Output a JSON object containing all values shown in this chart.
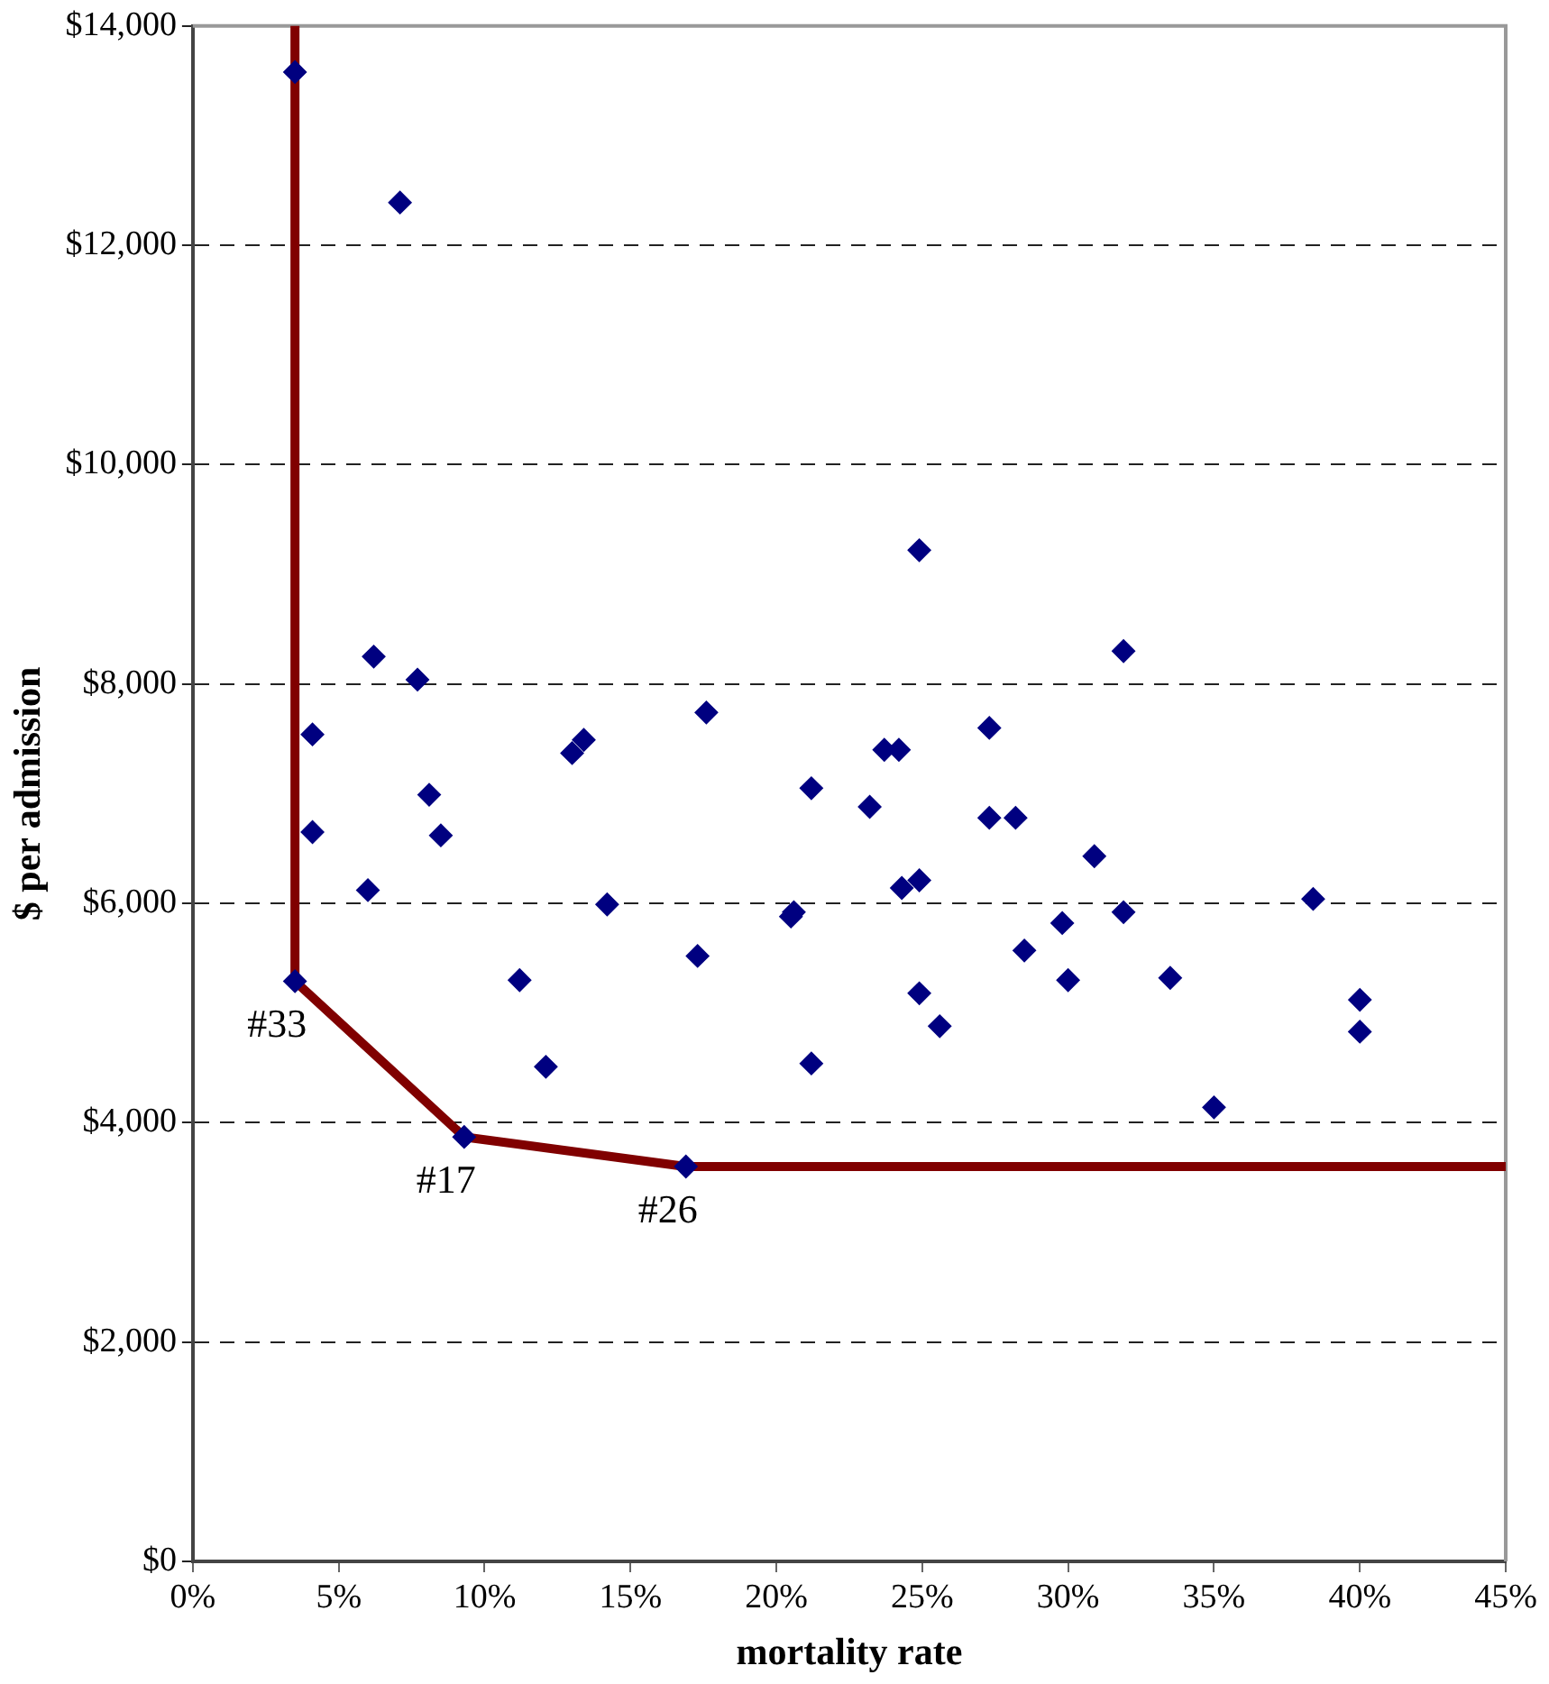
{
  "chart_data": {
    "type": "scatter",
    "xlabel": "mortality rate",
    "ylabel": "$ per admission",
    "xlim": [
      0,
      45
    ],
    "ylim": [
      0,
      14000
    ],
    "xticks": [
      {
        "value": 0,
        "label": "0%"
      },
      {
        "value": 5,
        "label": "5%"
      },
      {
        "value": 10,
        "label": "10%"
      },
      {
        "value": 15,
        "label": "15%"
      },
      {
        "value": 20,
        "label": "20%"
      },
      {
        "value": 25,
        "label": "25%"
      },
      {
        "value": 30,
        "label": "30%"
      },
      {
        "value": 35,
        "label": "35%"
      },
      {
        "value": 40,
        "label": "40%"
      },
      {
        "value": 45,
        "label": "45%"
      }
    ],
    "yticks": [
      {
        "value": 0,
        "label": "$0"
      },
      {
        "value": 2000,
        "label": "$2,000"
      },
      {
        "value": 4000,
        "label": "$4,000"
      },
      {
        "value": 6000,
        "label": "$6,000"
      },
      {
        "value": 8000,
        "label": "$8,000"
      },
      {
        "value": 10000,
        "label": "$10,000"
      },
      {
        "value": 12000,
        "label": "$12,000"
      },
      {
        "value": 14000,
        "label": "$14,000"
      }
    ],
    "grid": "y",
    "legend": false,
    "marker": "diamond",
    "series": [
      {
        "color": "#000080",
        "x": [
          3.5,
          7.1,
          4.1,
          4.1,
          6.2,
          7.7,
          6.0,
          3.5,
          8.1,
          8.5,
          11.2,
          12.1,
          9.3,
          13.0,
          13.4,
          14.2,
          17.6,
          17.3,
          16.9,
          20.5,
          20.6,
          21.2,
          21.2,
          23.2,
          23.7,
          24.2,
          24.9,
          24.3,
          24.9,
          24.9,
          25.6,
          27.3,
          27.3,
          28.2,
          28.5,
          29.8,
          30.0,
          30.9,
          31.9,
          31.9,
          33.5,
          35.0,
          38.4,
          40.0,
          40.0
        ],
        "values": [
          13580,
          12390,
          7540,
          6650,
          8250,
          8040,
          6120,
          5290,
          6990,
          6620,
          5300,
          4510,
          3870,
          7370,
          7490,
          5990,
          7740,
          5520,
          3600,
          5880,
          5920,
          7050,
          4540,
          6880,
          7400,
          7400,
          9220,
          6140,
          6210,
          5180,
          4880,
          7600,
          6780,
          6780,
          5570,
          5820,
          5300,
          6430,
          8300,
          5920,
          5320,
          4140,
          6040,
          5120,
          4830
        ]
      },
      {
        "type": "line",
        "color": "#800000",
        "line_style": "solid",
        "marker": "none",
        "x": [
          3.5,
          3.5,
          9.3,
          16.9,
          45
        ],
        "values": [
          14000,
          5290,
          3870,
          3600,
          3600
        ]
      }
    ],
    "annotations": [
      {
        "text": "#33",
        "x": 3.5,
        "y": 5290
      },
      {
        "text": "#17",
        "x": 9.3,
        "y": 3870
      },
      {
        "text": "#26",
        "x": 16.9,
        "y": 3600
      }
    ]
  }
}
